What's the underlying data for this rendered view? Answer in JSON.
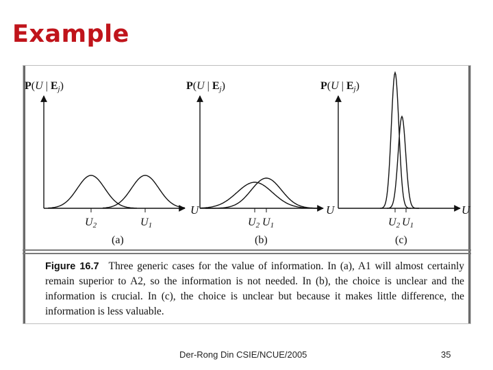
{
  "slide": {
    "title": "Example"
  },
  "figure": {
    "panels": [
      {
        "id": "a",
        "y_label": "P(U | Ej)",
        "x_axis": "U",
        "ticks": [
          "U2",
          "U1"
        ],
        "panel_label": "(a)"
      },
      {
        "id": "b",
        "y_label": "P(U | Ej)",
        "x_axis": "U",
        "ticks": [
          "U2",
          "U1"
        ],
        "panel_label": "(b)"
      },
      {
        "id": "c",
        "y_label": "P(U | Ej)",
        "x_axis": "U",
        "ticks": [
          "U2",
          "U1"
        ],
        "panel_label": "(c)"
      }
    ],
    "caption": {
      "label": "Figure 16.7",
      "text": "Three generic cases for the value of information. In (a), A1 will almost certainly remain superior to A2, so the information is not needed. In (b), the choice is unclear and the information is crucial. In (c), the choice is unclear but because it makes little difference, the information is less valuable."
    }
  },
  "footer": {
    "author": "Der-Rong Din CSIE/NCUE/2005",
    "page": "35"
  },
  "colors": {
    "title": "#c0141b",
    "ink": "#111111"
  }
}
